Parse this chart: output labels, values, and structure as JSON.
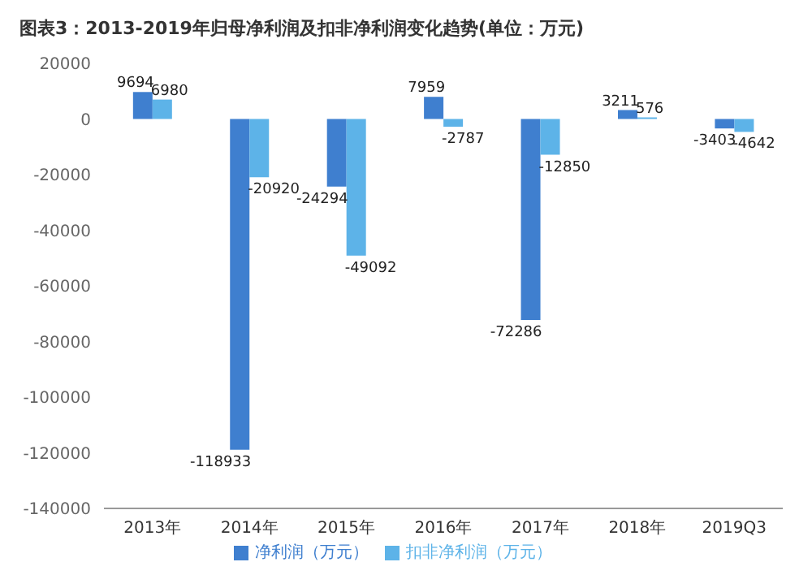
{
  "chart_data": {
    "type": "bar",
    "title": "图表3：2013-2019年归母净利润及扣非净利润变化趋势(单位：万元)",
    "categories": [
      "2013年",
      "2014年",
      "2015年",
      "2016年",
      "2017年",
      "2018年",
      "2019Q3"
    ],
    "series": [
      {
        "name": "净利润（万元）",
        "color": "#3f7fcf",
        "values": [
          9694,
          -118933,
          -24294,
          7959,
          -72286,
          3211,
          -3403
        ]
      },
      {
        "name": "扣非净利润（万元）",
        "color": "#5db3e8",
        "values": [
          6980,
          -20920,
          -49092,
          -2787,
          -12850,
          576,
          -4642
        ]
      }
    ],
    "ylim": [
      -140000,
      20000
    ],
    "yticks": [
      -140000,
      -120000,
      -100000,
      -80000,
      -60000,
      -40000,
      -20000,
      0,
      20000
    ],
    "grid": false,
    "legend": "bottom",
    "data_labels": true
  }
}
